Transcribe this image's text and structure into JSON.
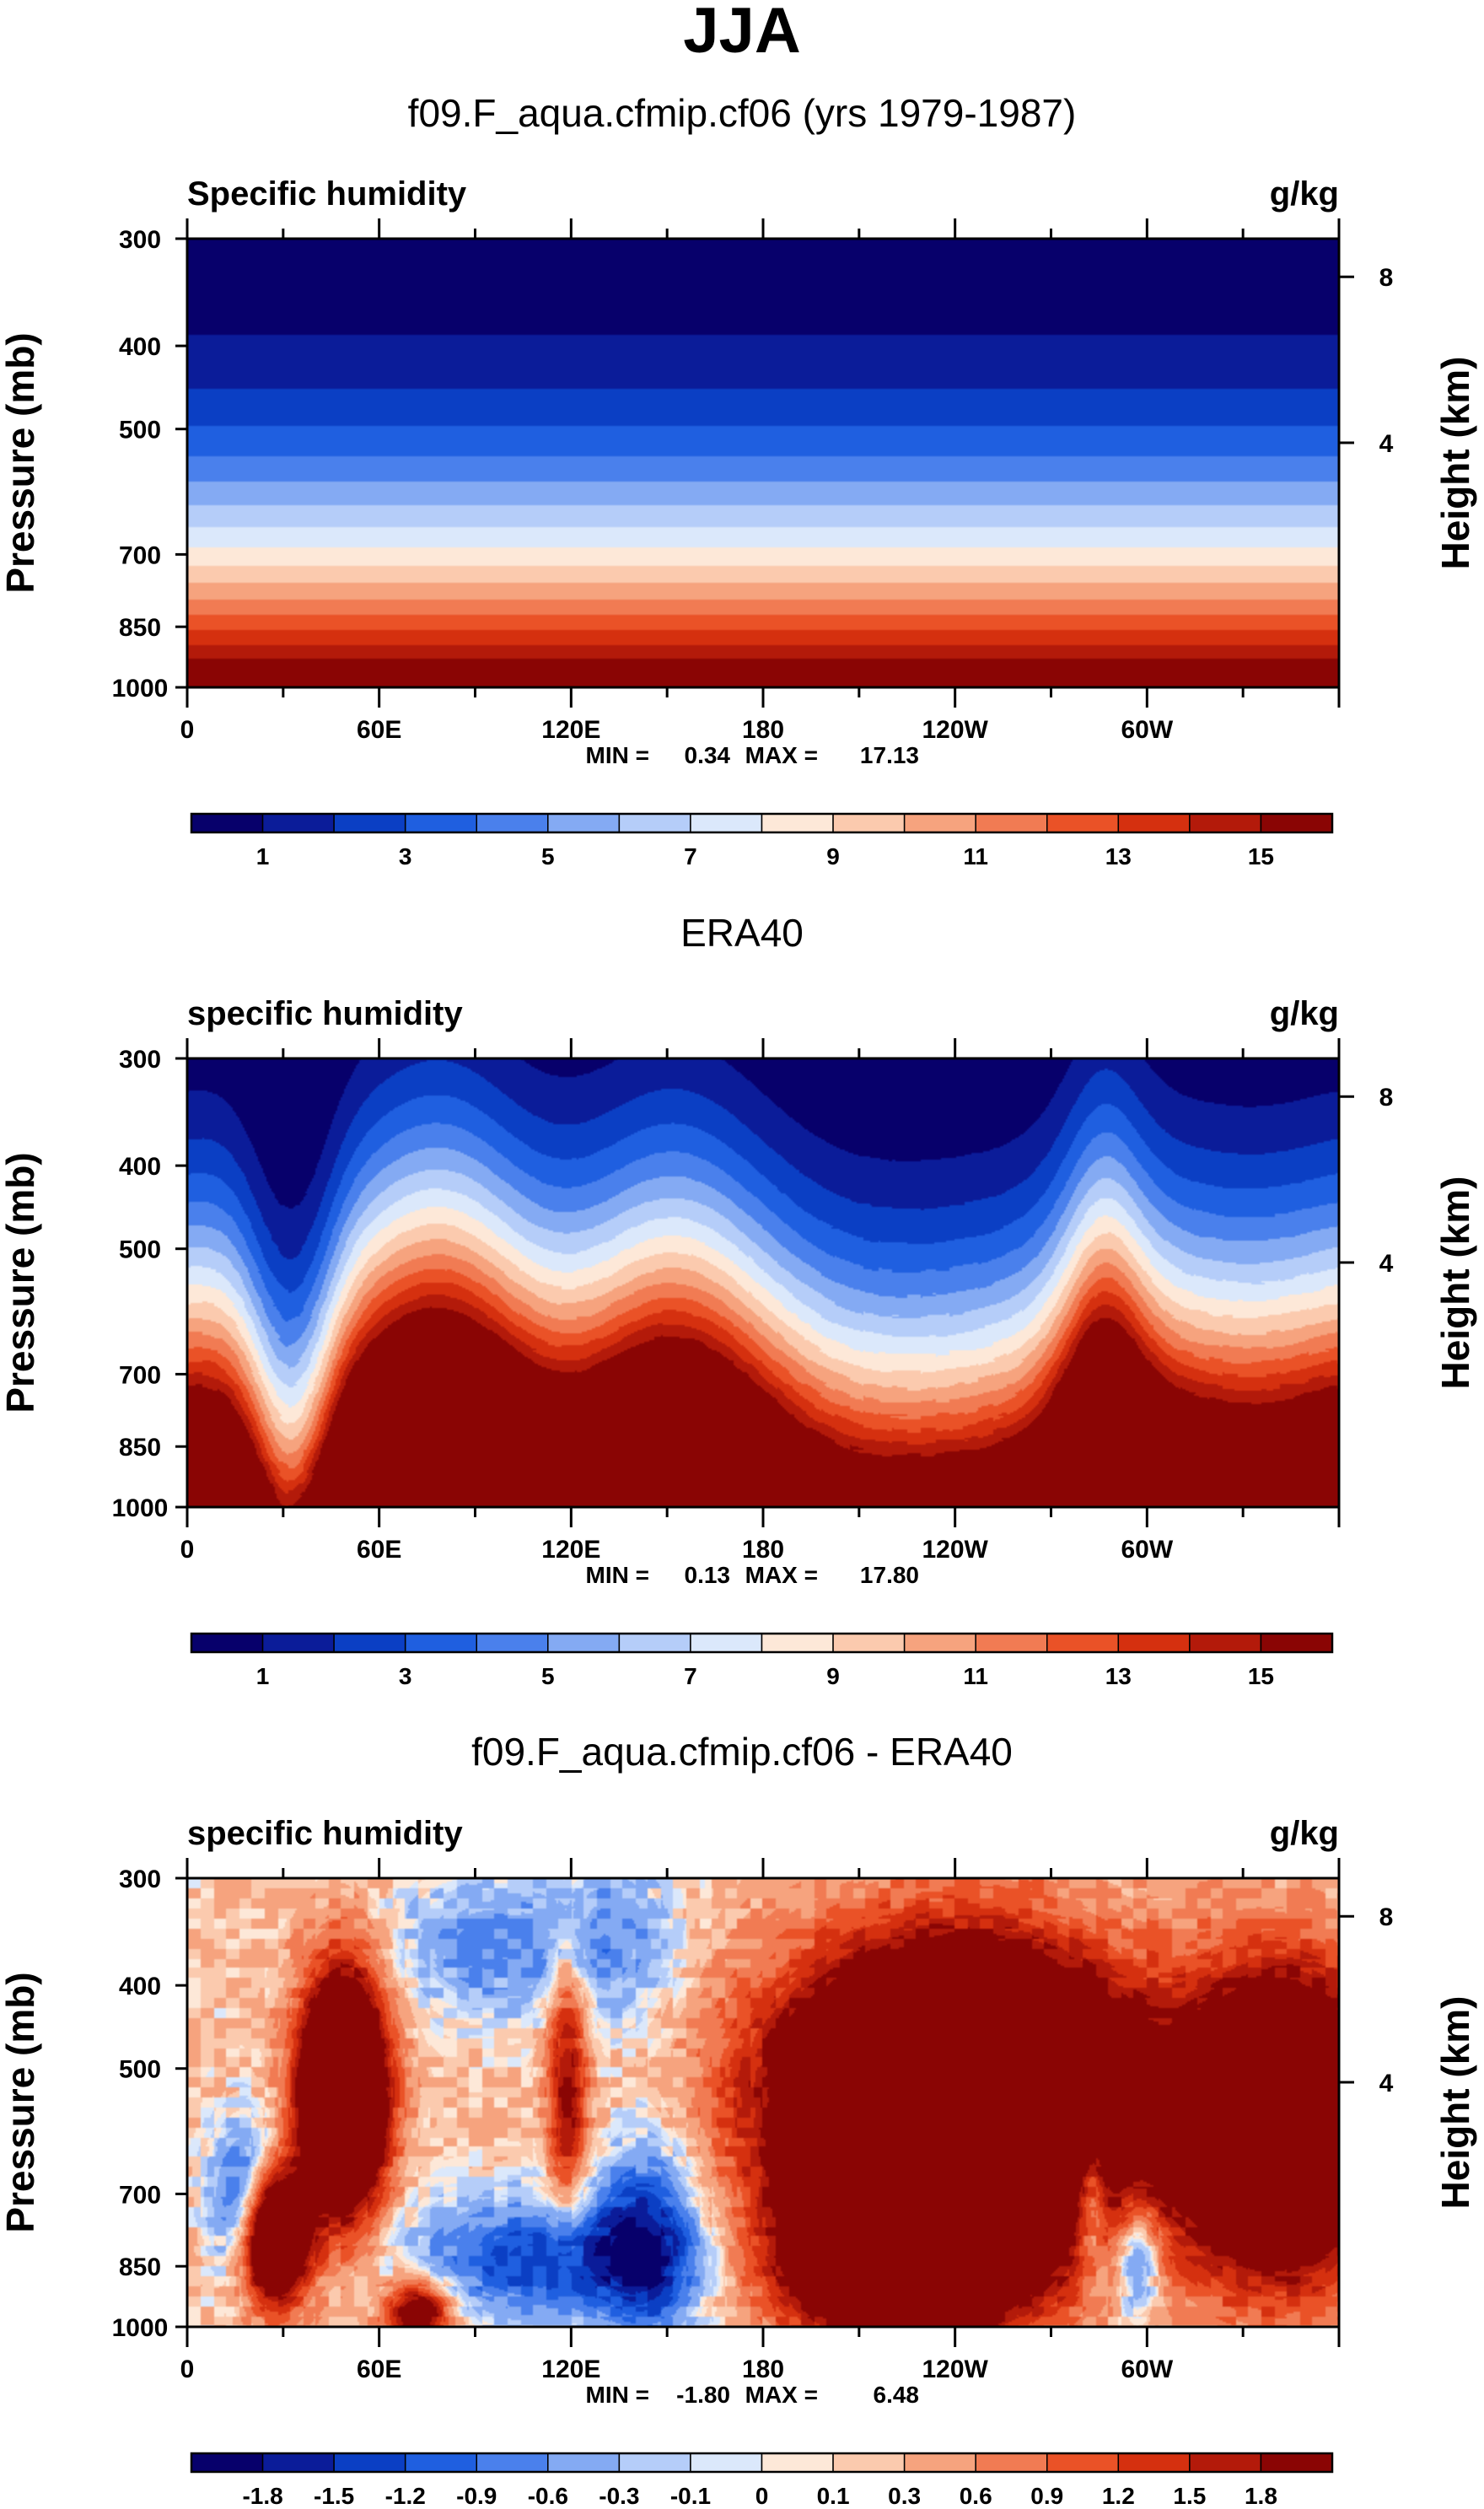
{
  "title": "JJA",
  "colorbars": {
    "q": {
      "labels": [
        "1",
        "3",
        "5",
        "7",
        "9",
        "11",
        "13",
        "15"
      ],
      "colors": [
        "#07006b",
        "#0b1c99",
        "#0b3fc4",
        "#1f5fe0",
        "#4a80ec",
        "#84aaf3",
        "#b5cdf9",
        "#dbe8fb",
        "#fde8d8",
        "#fbcaae",
        "#f6a37e",
        "#f17b53",
        "#ea5227",
        "#d5300f",
        "#b31a0a",
        "#8a0504"
      ]
    },
    "diff": {
      "labels": [
        "-1.8",
        "-1.5",
        "-1.2",
        "-0.9",
        "-0.6",
        "-0.3",
        "-0.1",
        "0",
        "0.1",
        "0.3",
        "0.6",
        "0.9",
        "1.2",
        "1.5",
        "1.8"
      ],
      "colors": [
        "#07006b",
        "#0b1c99",
        "#0b3fc4",
        "#1f5fe0",
        "#4a80ec",
        "#84aaf3",
        "#b5cdf9",
        "#dbe8fb",
        "#fde8d8",
        "#fbcaae",
        "#f6a37e",
        "#f17b53",
        "#ea5227",
        "#d5300f",
        "#b31a0a",
        "#8a0504"
      ]
    }
  },
  "chart_data": [
    {
      "type": "heatmap",
      "title": "f09.F_aqua.cfmip.cf06 (yrs 1979-1987)",
      "variable": "Specific humidity",
      "units": "g/kg",
      "xlabel": "",
      "ylabel": "Pressure (mb)",
      "y2label": "Height (km)",
      "x_ticks": [
        "0",
        "60E",
        "120E",
        "180",
        "120W",
        "60W"
      ],
      "y_ticks": [
        "300",
        "400",
        "500",
        "700",
        "850",
        "1000"
      ],
      "y2_ticks": [
        "8",
        "4"
      ],
      "ylim": [
        1000,
        300
      ],
      "colorbar": "q",
      "min": "0.34",
      "max": "17.13",
      "min_label": "MIN =",
      "max_label": "MAX =",
      "pattern": "zonally-uniform"
    },
    {
      "type": "heatmap",
      "title": "ERA40",
      "variable": "specific humidity",
      "units": "g/kg",
      "xlabel": "",
      "ylabel": "Pressure (mb)",
      "y2label": "Height (km)",
      "x_ticks": [
        "0",
        "60E",
        "120E",
        "180",
        "120W",
        "60W"
      ],
      "y_ticks": [
        "300",
        "400",
        "500",
        "700",
        "850",
        "1000"
      ],
      "y2_ticks": [
        "8",
        "4"
      ],
      "ylim": [
        1000,
        300
      ],
      "colorbar": "q",
      "min": "0.13",
      "max": "17.80",
      "min_label": "MIN =",
      "max_label": "MAX =",
      "pattern": "observed"
    },
    {
      "type": "heatmap",
      "title": "f09.F_aqua.cfmip.cf06 - ERA40",
      "variable": "specific humidity",
      "units": "g/kg",
      "xlabel": "",
      "ylabel": "Pressure (mb)",
      "y2label": "Height (km)",
      "x_ticks": [
        "0",
        "60E",
        "120E",
        "180",
        "120W",
        "60W"
      ],
      "y_ticks": [
        "300",
        "400",
        "500",
        "700",
        "850",
        "1000"
      ],
      "y2_ticks": [
        "8",
        "4"
      ],
      "ylim": [
        1000,
        300
      ],
      "colorbar": "diff",
      "min": "-1.80",
      "max": "6.48",
      "min_label": "MIN =",
      "max_label": "MAX =",
      "pattern": "difference"
    }
  ]
}
